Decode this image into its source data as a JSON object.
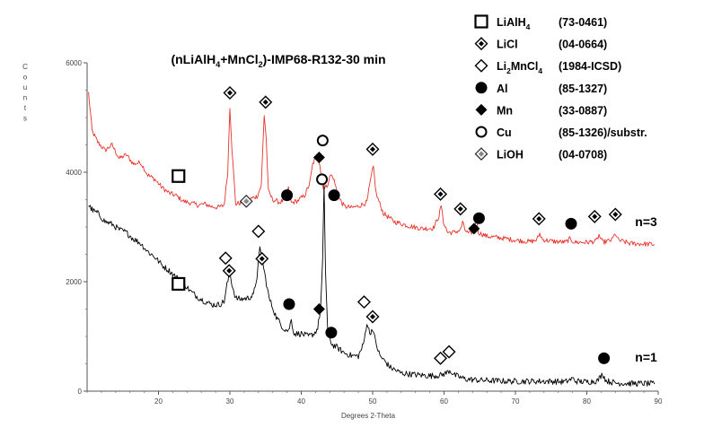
{
  "title_parts": [
    "(nLiAlH",
    "4",
    "+MnCl",
    "2",
    ")-IMP68-R132-30 min"
  ],
  "chart_data": {
    "type": "line",
    "xlabel": "Degrees 2-Theta",
    "ylabel": "Counts",
    "xlim": [
      10,
      90
    ],
    "ylim": [
      0,
      6000
    ],
    "x_ticks": [
      20,
      30,
      40,
      50,
      60,
      70,
      80,
      90
    ],
    "y_ticks": [
      0,
      2000,
      4000,
      6000
    ],
    "series": [
      {
        "name": "n=3",
        "color": "#e8322a",
        "points": [
          [
            10.2,
            5450
          ],
          [
            10.7,
            4750
          ],
          [
            11.5,
            4550
          ],
          [
            12.5,
            4400
          ],
          [
            13.5,
            4500
          ],
          [
            14.5,
            4250
          ],
          [
            15.5,
            4320
          ],
          [
            16.5,
            4150
          ],
          [
            17.5,
            4180
          ],
          [
            18.5,
            3950
          ],
          [
            19.5,
            3870
          ],
          [
            20.5,
            3720
          ],
          [
            21.5,
            3620
          ],
          [
            22.5,
            3570
          ],
          [
            23.5,
            3470
          ],
          [
            24.5,
            3440
          ],
          [
            25.5,
            3400
          ],
          [
            26.5,
            3420
          ],
          [
            27.5,
            3370
          ],
          [
            28.5,
            3360
          ],
          [
            29.2,
            3400
          ],
          [
            29.7,
            4000
          ],
          [
            30.0,
            5200
          ],
          [
            30.3,
            4400
          ],
          [
            30.8,
            3420
          ],
          [
            31.5,
            3440
          ],
          [
            32.3,
            3470
          ],
          [
            33.0,
            3520
          ],
          [
            33.8,
            3560
          ],
          [
            34.4,
            3750
          ],
          [
            34.8,
            5050
          ],
          [
            35.1,
            4600
          ],
          [
            35.4,
            3650
          ],
          [
            36.0,
            3500
          ],
          [
            37.0,
            3450
          ],
          [
            37.7,
            3500
          ],
          [
            38.2,
            3700
          ],
          [
            38.6,
            3440
          ],
          [
            39.5,
            3480
          ],
          [
            40.5,
            3580
          ],
          [
            41.2,
            3800
          ],
          [
            41.6,
            4150
          ],
          [
            42.2,
            4320
          ],
          [
            42.6,
            4150
          ],
          [
            42.9,
            3800
          ],
          [
            43.2,
            3700
          ],
          [
            43.6,
            3750
          ],
          [
            44.1,
            3950
          ],
          [
            44.5,
            3900
          ],
          [
            45.2,
            3550
          ],
          [
            46.0,
            3380
          ],
          [
            47.0,
            3350
          ],
          [
            48.0,
            3380
          ],
          [
            49.2,
            3450
          ],
          [
            49.7,
            3850
          ],
          [
            50.1,
            4100
          ],
          [
            50.5,
            3600
          ],
          [
            51.5,
            3250
          ],
          [
            53.0,
            3100
          ],
          [
            55.0,
            3020
          ],
          [
            57.0,
            2970
          ],
          [
            58.5,
            2980
          ],
          [
            59.3,
            3200
          ],
          [
            59.6,
            3400
          ],
          [
            59.9,
            3100
          ],
          [
            60.5,
            2900
          ],
          [
            61.5,
            2900
          ],
          [
            62.3,
            2950
          ],
          [
            62.6,
            3080
          ],
          [
            62.9,
            2950
          ],
          [
            63.5,
            2870
          ],
          [
            64.2,
            2930
          ],
          [
            64.5,
            3150
          ],
          [
            64.8,
            2900
          ],
          [
            66.0,
            2830
          ],
          [
            68.0,
            2800
          ],
          [
            70.0,
            2760
          ],
          [
            72.0,
            2730
          ],
          [
            73.0,
            2760
          ],
          [
            73.4,
            2880
          ],
          [
            73.8,
            2770
          ],
          [
            75.0,
            2740
          ],
          [
            77.0,
            2720
          ],
          [
            77.6,
            2780
          ],
          [
            78.3,
            2720
          ],
          [
            80.0,
            2720
          ],
          [
            81.3,
            2740
          ],
          [
            81.7,
            2850
          ],
          [
            82.2,
            2720
          ],
          [
            83.5,
            2760
          ],
          [
            84.0,
            2880
          ],
          [
            84.4,
            2760
          ],
          [
            86.0,
            2700
          ],
          [
            88.0,
            2690
          ],
          [
            89.5,
            2680
          ]
        ]
      },
      {
        "name": "n=1",
        "color": "#000000",
        "points": [
          [
            10.2,
            3400
          ],
          [
            10.8,
            3300
          ],
          [
            11.5,
            3250
          ],
          [
            12.5,
            3100
          ],
          [
            13.5,
            3050
          ],
          [
            14.5,
            2950
          ],
          [
            15.5,
            2900
          ],
          [
            16.5,
            2780
          ],
          [
            17.5,
            2700
          ],
          [
            18.5,
            2550
          ],
          [
            19.5,
            2450
          ],
          [
            20.5,
            2300
          ],
          [
            21.5,
            2200
          ],
          [
            22.5,
            2080
          ],
          [
            23.5,
            1980
          ],
          [
            24.5,
            1820
          ],
          [
            25.5,
            1720
          ],
          [
            26.5,
            1640
          ],
          [
            27.5,
            1580
          ],
          [
            28.5,
            1580
          ],
          [
            29.2,
            1640
          ],
          [
            29.6,
            1950
          ],
          [
            30.0,
            2150
          ],
          [
            30.3,
            1950
          ],
          [
            30.8,
            1700
          ],
          [
            31.5,
            1680
          ],
          [
            32.5,
            1700
          ],
          [
            33.3,
            1750
          ],
          [
            33.8,
            2100
          ],
          [
            34.2,
            2600
          ],
          [
            34.6,
            2350
          ],
          [
            35.0,
            2050
          ],
          [
            35.5,
            1700
          ],
          [
            36.5,
            1350
          ],
          [
            37.5,
            1150
          ],
          [
            38.2,
            1100
          ],
          [
            38.6,
            1300
          ],
          [
            39.0,
            1050
          ],
          [
            40.0,
            1050
          ],
          [
            41.0,
            1000
          ],
          [
            41.8,
            1050
          ],
          [
            42.3,
            1150
          ],
          [
            42.7,
            1500
          ],
          [
            43.0,
            2400
          ],
          [
            43.2,
            3750
          ],
          [
            43.4,
            2200
          ],
          [
            43.7,
            1100
          ],
          [
            44.3,
            850
          ],
          [
            45.0,
            800
          ],
          [
            46.0,
            700
          ],
          [
            47.0,
            650
          ],
          [
            48.0,
            640
          ],
          [
            48.7,
            850
          ],
          [
            49.2,
            1250
          ],
          [
            49.6,
            1050
          ],
          [
            50.0,
            1150
          ],
          [
            50.4,
            900
          ],
          [
            51.0,
            650
          ],
          [
            52.5,
            430
          ],
          [
            54.0,
            330
          ],
          [
            56.0,
            300
          ],
          [
            58.0,
            280
          ],
          [
            59.5,
            290
          ],
          [
            60.3,
            330
          ],
          [
            60.8,
            380
          ],
          [
            61.5,
            290
          ],
          [
            63.0,
            220
          ],
          [
            65.0,
            200
          ],
          [
            67.0,
            190
          ],
          [
            69.0,
            180
          ],
          [
            71.0,
            180
          ],
          [
            73.0,
            180
          ],
          [
            75.0,
            180
          ],
          [
            77.0,
            170
          ],
          [
            78.0,
            230
          ],
          [
            78.5,
            180
          ],
          [
            80.0,
            170
          ],
          [
            81.5,
            190
          ],
          [
            82.2,
            320
          ],
          [
            82.7,
            190
          ],
          [
            84.0,
            150
          ],
          [
            86.0,
            140
          ],
          [
            88.0,
            140
          ],
          [
            89.5,
            130
          ]
        ]
      }
    ],
    "series_labels": [
      {
        "text": "n=3",
        "x": 84,
        "y": 3100
      },
      {
        "text": "n=1",
        "x": 84,
        "y": 620
      }
    ],
    "legend": {
      "placement": "top-right",
      "entries": [
        {
          "marker": "square-open",
          "name_parts": [
            "LiAlH",
            "4",
            ""
          ],
          "code": "(73-0461)"
        },
        {
          "marker": "diamond-dot",
          "name_parts": [
            "LiCl",
            "",
            ""
          ],
          "code": "(04-0664)"
        },
        {
          "marker": "diamond-open",
          "name_parts": [
            "Li",
            "2",
            "MnCl",
            "4",
            ""
          ],
          "code": "(1984-ICSD)"
        },
        {
          "marker": "circle-filled",
          "name_parts": [
            "Al",
            "",
            ""
          ],
          "code": "(85-1327)"
        },
        {
          "marker": "diamond-filled",
          "name_parts": [
            "Mn",
            "",
            ""
          ],
          "code": "(33-0887)"
        },
        {
          "marker": "circle-open",
          "name_parts": [
            "Cu",
            "",
            ""
          ],
          "code": "(85-1326)/substr."
        },
        {
          "marker": "diamond-gray",
          "name_parts": [
            "LiOH",
            "",
            ""
          ],
          "code": "(04-0708)"
        }
      ]
    },
    "annotations": [
      {
        "marker": "square-open",
        "x": 22.8,
        "y": 3930
      },
      {
        "marker": "diamond-dot",
        "x": 30.0,
        "y": 5450
      },
      {
        "marker": "diamond-gray",
        "x": 32.3,
        "y": 3470
      },
      {
        "marker": "diamond-dot",
        "x": 35.0,
        "y": 5280
      },
      {
        "marker": "circle-filled",
        "x": 38.0,
        "y": 3580
      },
      {
        "marker": "diamond-filled",
        "x": 42.5,
        "y": 4270
      },
      {
        "marker": "circle-open",
        "x": 43.0,
        "y": 4580
      },
      {
        "marker": "circle-open",
        "x": 42.9,
        "y": 3870
      },
      {
        "marker": "circle-filled",
        "x": 44.6,
        "y": 3580
      },
      {
        "marker": "diamond-dot",
        "x": 50.0,
        "y": 4420
      },
      {
        "marker": "diamond-dot",
        "x": 59.5,
        "y": 3600
      },
      {
        "marker": "diamond-dot",
        "x": 62.3,
        "y": 3330
      },
      {
        "marker": "circle-filled",
        "x": 64.9,
        "y": 3160
      },
      {
        "marker": "diamond-filled",
        "x": 64.2,
        "y": 2970
      },
      {
        "marker": "diamond-dot",
        "x": 73.3,
        "y": 3150
      },
      {
        "marker": "circle-filled",
        "x": 77.8,
        "y": 3060
      },
      {
        "marker": "diamond-dot",
        "x": 81.1,
        "y": 3190
      },
      {
        "marker": "diamond-dot",
        "x": 84.0,
        "y": 3230
      },
      {
        "marker": "square-open",
        "x": 22.8,
        "y": 1960
      },
      {
        "marker": "diamond-open",
        "x": 29.4,
        "y": 2430
      },
      {
        "marker": "diamond-dot",
        "x": 29.9,
        "y": 2200
      },
      {
        "marker": "diamond-open",
        "x": 34.0,
        "y": 2920
      },
      {
        "marker": "diamond-dot",
        "x": 34.5,
        "y": 2420
      },
      {
        "marker": "circle-filled",
        "x": 38.3,
        "y": 1590
      },
      {
        "marker": "diamond-filled",
        "x": 42.5,
        "y": 1500
      },
      {
        "marker": "circle-filled",
        "x": 44.2,
        "y": 1070
      },
      {
        "marker": "diamond-open",
        "x": 48.8,
        "y": 1630
      },
      {
        "marker": "diamond-dot",
        "x": 50.0,
        "y": 1360
      },
      {
        "marker": "diamond-open",
        "x": 59.5,
        "y": 600
      },
      {
        "marker": "diamond-open",
        "x": 60.7,
        "y": 720
      },
      {
        "marker": "circle-filled",
        "x": 82.4,
        "y": 600
      }
    ]
  }
}
